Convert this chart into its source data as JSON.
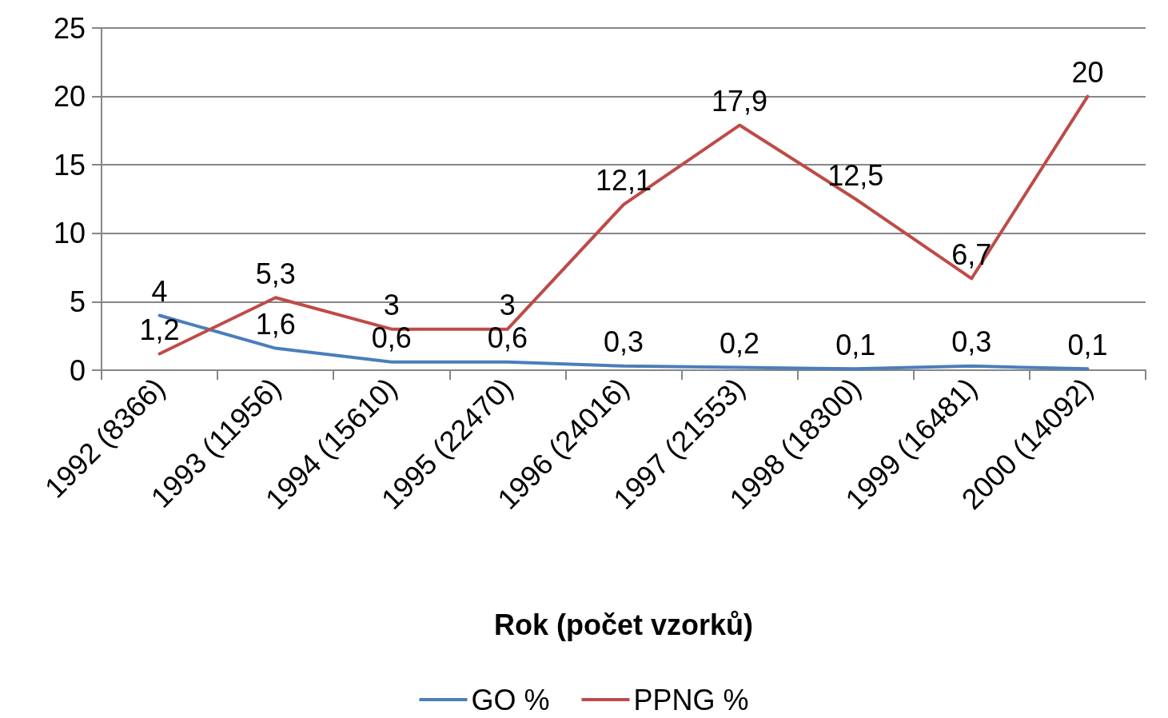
{
  "chart_data": {
    "type": "line",
    "xlabel": "Rok (počet vzorků)",
    "categories": [
      "1992 (8366)",
      "1993 (11956)",
      "1994 (15610)",
      "1995 (22470)",
      "1996 (24016)",
      "1997 (21553)",
      "1998 (18300)",
      "1999 (16481)",
      "2000 (14092)"
    ],
    "series": [
      {
        "name": "GO %",
        "color": "#4a7ebb",
        "values": [
          4,
          1.6,
          0.6,
          0.6,
          0.3,
          0.2,
          0.1,
          0.3,
          0.1
        ],
        "value_labels": [
          "4",
          "1,6",
          "0,6",
          "0,6",
          "0,3",
          "0,2",
          "0,1",
          "0,3",
          "0,1"
        ]
      },
      {
        "name": "PPNG %",
        "color": "#be4b48",
        "values": [
          1.2,
          5.3,
          3,
          3,
          12.1,
          17.9,
          12.5,
          6.7,
          20
        ],
        "value_labels": [
          "1,2",
          "5,3",
          "3",
          "3",
          "12,1",
          "17,9",
          "12,5",
          "6,7",
          "20"
        ]
      }
    ],
    "ylim": [
      0,
      25
    ],
    "yticks": [
      0,
      5,
      10,
      15,
      20,
      25
    ],
    "grid": "y",
    "legend": "bottom",
    "marker": "none",
    "line_style": "solid"
  }
}
